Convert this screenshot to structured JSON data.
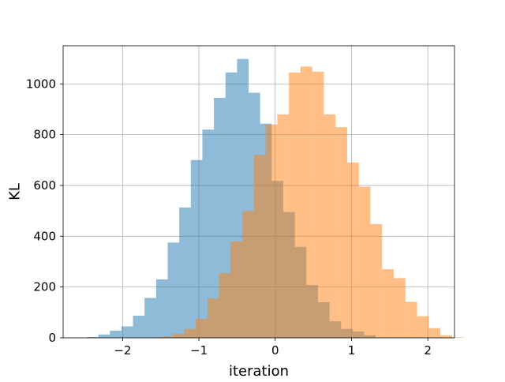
{
  "chart_data": {
    "type": "bar",
    "subtype": "overlapping-histogram",
    "xlabel": "iteration",
    "ylabel": "KL",
    "xlim": [
      -2.78,
      2.35
    ],
    "ylim": [
      0,
      1150
    ],
    "xticks": [
      -2,
      -1,
      0,
      1,
      2
    ],
    "xtick_labels": [
      "−2",
      "−1",
      "0",
      "1",
      "2"
    ],
    "yticks": [
      0,
      200,
      400,
      600,
      800,
      1000
    ],
    "ytick_labels": [
      "0",
      "200",
      "400",
      "600",
      "800",
      "1000"
    ],
    "grid": true,
    "series": [
      {
        "color": "#1f77b4",
        "opacity": 0.5,
        "bin_width": 0.1515,
        "x_start": -2.47,
        "values": [
          3,
          13,
          28,
          45,
          87,
          157,
          230,
          375,
          513,
          700,
          820,
          945,
          1045,
          1098,
          965,
          843,
          618,
          495,
          358,
          208,
          140,
          65,
          35,
          25,
          10
        ]
      },
      {
        "color": "#ff7f0e",
        "opacity": 0.5,
        "bin_width": 0.1527,
        "x_start": -1.5,
        "values": [
          5,
          15,
          35,
          75,
          155,
          255,
          380,
          500,
          720,
          840,
          880,
          1045,
          1068,
          1048,
          880,
          830,
          690,
          595,
          448,
          270,
          235,
          142,
          85,
          38,
          10,
          2
        ]
      }
    ]
  }
}
